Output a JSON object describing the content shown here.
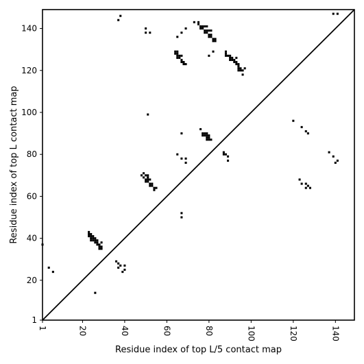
{
  "chart_data": {
    "type": "scatter",
    "title": "",
    "xlabel": "Residue index of top L/5 contact map",
    "ylabel": "Residue index of top L contact map",
    "xlim": [
      1,
      149
    ],
    "ylim": [
      1,
      149
    ],
    "x_ticks": [
      1,
      20,
      40,
      60,
      80,
      100,
      120,
      140
    ],
    "y_ticks": [
      1,
      20,
      40,
      60,
      80,
      100,
      120,
      140
    ],
    "grid": false,
    "diagonal": true,
    "marker_color": "#000000",
    "series": [
      {
        "points": [
          [
            1,
            37
          ],
          [
            4,
            26
          ],
          [
            6,
            24
          ],
          [
            26,
            14
          ],
          [
            23,
            43
          ],
          [
            23,
            42
          ],
          [
            23,
            41
          ],
          [
            24,
            42
          ],
          [
            24,
            41
          ],
          [
            24,
            40
          ],
          [
            24,
            39
          ],
          [
            25,
            41
          ],
          [
            25,
            40
          ],
          [
            25,
            39
          ],
          [
            26,
            40
          ],
          [
            26,
            39
          ],
          [
            26,
            38
          ],
          [
            27,
            39
          ],
          [
            27,
            38
          ],
          [
            27,
            37
          ],
          [
            28,
            37
          ],
          [
            28,
            36
          ],
          [
            28,
            35
          ],
          [
            29,
            38
          ],
          [
            29,
            36
          ],
          [
            29,
            35
          ],
          [
            36,
            29
          ],
          [
            37,
            28
          ],
          [
            37,
            26
          ],
          [
            38,
            27
          ],
          [
            39,
            24
          ],
          [
            40,
            27
          ],
          [
            40,
            25
          ],
          [
            48,
            70
          ],
          [
            49,
            71
          ],
          [
            49,
            69
          ],
          [
            50,
            70
          ],
          [
            50,
            68
          ],
          [
            50,
            67
          ],
          [
            51,
            70
          ],
          [
            51,
            69
          ],
          [
            51,
            68
          ],
          [
            51,
            67
          ],
          [
            52,
            68
          ],
          [
            52,
            66
          ],
          [
            52,
            65
          ],
          [
            53,
            66
          ],
          [
            53,
            65
          ],
          [
            54,
            64
          ],
          [
            54,
            63
          ],
          [
            55,
            64
          ],
          [
            51,
            99
          ],
          [
            65,
            80
          ],
          [
            67,
            78
          ],
          [
            67,
            52
          ],
          [
            67,
            50
          ],
          [
            69,
            78
          ],
          [
            69,
            76
          ],
          [
            67,
            90
          ],
          [
            76,
            92
          ],
          [
            77,
            90
          ],
          [
            77,
            89
          ],
          [
            78,
            90
          ],
          [
            78,
            89
          ],
          [
            79,
            90
          ],
          [
            79,
            89
          ],
          [
            79,
            88
          ],
          [
            79,
            87
          ],
          [
            80,
            89
          ],
          [
            80,
            88
          ],
          [
            80,
            87
          ],
          [
            81,
            87
          ],
          [
            87,
            81
          ],
          [
            87,
            80
          ],
          [
            88,
            80
          ],
          [
            89,
            79
          ],
          [
            89,
            77
          ],
          [
            120,
            96
          ],
          [
            124,
            93
          ],
          [
            126,
            91
          ],
          [
            127,
            90
          ],
          [
            123,
            68
          ],
          [
            124,
            66
          ],
          [
            126,
            66
          ],
          [
            126,
            64
          ],
          [
            127,
            65
          ],
          [
            128,
            64
          ],
          [
            137,
            81
          ],
          [
            139,
            79
          ],
          [
            140,
            76
          ],
          [
            141,
            77
          ],
          [
            37,
            144
          ],
          [
            38,
            146
          ],
          [
            50,
            140
          ],
          [
            50,
            138
          ],
          [
            52,
            138
          ],
          [
            65,
            136
          ],
          [
            67,
            138
          ],
          [
            69,
            140
          ],
          [
            73,
            143
          ],
          [
            75,
            143
          ],
          [
            75,
            142
          ],
          [
            76,
            141
          ],
          [
            76,
            140
          ],
          [
            77,
            141
          ],
          [
            77,
            140
          ],
          [
            78,
            141
          ],
          [
            78,
            139
          ],
          [
            78,
            138
          ],
          [
            79,
            141
          ],
          [
            79,
            139
          ],
          [
            79,
            138
          ],
          [
            80,
            139
          ],
          [
            80,
            137
          ],
          [
            80,
            136
          ],
          [
            81,
            139
          ],
          [
            81,
            137
          ],
          [
            81,
            136
          ],
          [
            82,
            135
          ],
          [
            82,
            134
          ],
          [
            83,
            135
          ],
          [
            83,
            134
          ],
          [
            80,
            127
          ],
          [
            82,
            129
          ],
          [
            64,
            129
          ],
          [
            64,
            128
          ],
          [
            65,
            129
          ],
          [
            65,
            128
          ],
          [
            65,
            127
          ],
          [
            65,
            126
          ],
          [
            66,
            127
          ],
          [
            66,
            126
          ],
          [
            67,
            127
          ],
          [
            67,
            125
          ],
          [
            67,
            124
          ],
          [
            68,
            124
          ],
          [
            68,
            123
          ],
          [
            69,
            123
          ],
          [
            88,
            129
          ],
          [
            88,
            128
          ],
          [
            88,
            127
          ],
          [
            89,
            127
          ],
          [
            90,
            127
          ],
          [
            90,
            126
          ],
          [
            90,
            125
          ],
          [
            91,
            126
          ],
          [
            91,
            125
          ],
          [
            92,
            125
          ],
          [
            92,
            124
          ],
          [
            93,
            126
          ],
          [
            93,
            124
          ],
          [
            93,
            123
          ],
          [
            94,
            123
          ],
          [
            94,
            122
          ],
          [
            94,
            121
          ],
          [
            94,
            120
          ],
          [
            95,
            121
          ],
          [
            95,
            120
          ],
          [
            96,
            120
          ],
          [
            96,
            118
          ],
          [
            97,
            121
          ],
          [
            139,
            147
          ],
          [
            141,
            147
          ]
        ]
      }
    ]
  }
}
